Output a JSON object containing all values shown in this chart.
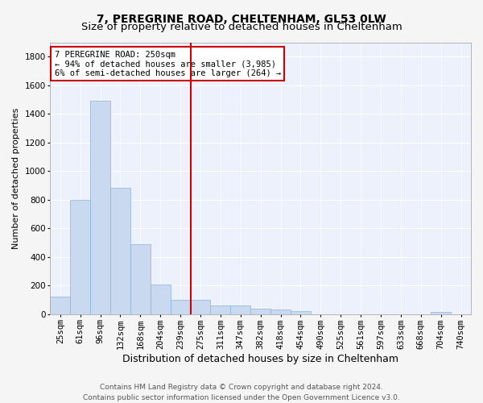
{
  "title": "7, PEREGRINE ROAD, CHELTENHAM, GL53 0LW",
  "subtitle": "Size of property relative to detached houses in Cheltenham",
  "xlabel": "Distribution of detached houses by size in Cheltenham",
  "ylabel": "Number of detached properties",
  "categories": [
    "25sqm",
    "61sqm",
    "96sqm",
    "132sqm",
    "168sqm",
    "204sqm",
    "239sqm",
    "275sqm",
    "311sqm",
    "347sqm",
    "382sqm",
    "418sqm",
    "454sqm",
    "490sqm",
    "525sqm",
    "561sqm",
    "597sqm",
    "633sqm",
    "668sqm",
    "704sqm",
    "740sqm"
  ],
  "values": [
    120,
    800,
    1490,
    880,
    490,
    205,
    100,
    100,
    60,
    60,
    38,
    30,
    20,
    0,
    0,
    0,
    0,
    0,
    0,
    15,
    0
  ],
  "bar_color": "#c9d9f0",
  "bar_edge_color": "#8ab4d8",
  "vline_x_index": 7,
  "vline_color": "#cc0000",
  "annotation_text": "7 PEREGRINE ROAD: 250sqm\n← 94% of detached houses are smaller (3,985)\n6% of semi-detached houses are larger (264) →",
  "annotation_box_color": "#ffffff",
  "annotation_box_edge": "#cc0000",
  "ylim": [
    0,
    1900
  ],
  "yticks": [
    0,
    200,
    400,
    600,
    800,
    1000,
    1200,
    1400,
    1600,
    1800
  ],
  "footer_line1": "Contains HM Land Registry data © Crown copyright and database right 2024.",
  "footer_line2": "Contains public sector information licensed under the Open Government Licence v3.0.",
  "background_color": "#edf1fb",
  "grid_color": "#ffffff",
  "fig_facecolor": "#f5f5f5",
  "title_fontsize": 10,
  "subtitle_fontsize": 9.5,
  "ylabel_fontsize": 8,
  "xlabel_fontsize": 9,
  "tick_fontsize": 7.5,
  "annotation_fontsize": 7.5,
  "footer_fontsize": 6.5
}
